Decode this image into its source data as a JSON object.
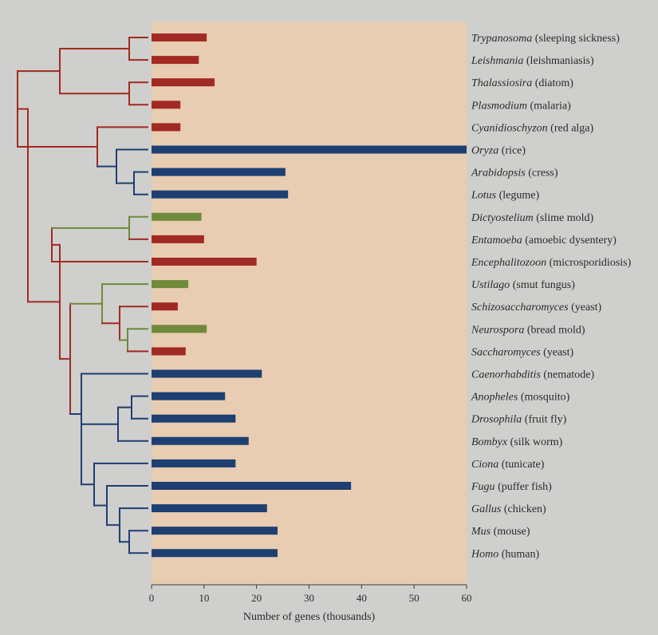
{
  "chart_data": {
    "type": "bar",
    "orientation": "horizontal",
    "xlabel": "Number of genes (thousands)",
    "xlim": [
      0,
      60
    ],
    "xticks": [
      0,
      10,
      20,
      30,
      40,
      50,
      60
    ],
    "colors": {
      "red": "#a12a22",
      "blue": "#1e3f72",
      "green": "#6f8a3a",
      "panel": "#e8cdb2",
      "page": "#cfcfcd"
    },
    "organisms": [
      {
        "genus": "Trypanosoma",
        "common": "(sleeping sickness)",
        "value": 10.5,
        "group": "red"
      },
      {
        "genus": "Leishmania",
        "common": "(leishmaniasis)",
        "value": 9,
        "group": "red"
      },
      {
        "genus": "Thalassiosira",
        "common": "(diatom)",
        "value": 12,
        "group": "red"
      },
      {
        "genus": "Plasmodium",
        "common": "(malaria)",
        "value": 5.5,
        "group": "red"
      },
      {
        "genus": "Cyanidioschyzon",
        "common": "(red alga)",
        "value": 5.5,
        "group": "red"
      },
      {
        "genus": "Oryza",
        "common": "(rice)",
        "value": 60,
        "group": "blue"
      },
      {
        "genus": "Arabidopsis",
        "common": "(cress)",
        "value": 25.5,
        "group": "blue"
      },
      {
        "genus": "Lotus",
        "common": "(legume)",
        "value": 26,
        "group": "blue"
      },
      {
        "genus": "Dictyostelium",
        "common": "(slime mold)",
        "value": 9.5,
        "group": "green"
      },
      {
        "genus": "Entamoeba",
        "common": "(amoebic dysentery)",
        "value": 10,
        "group": "red"
      },
      {
        "genus": "Encephalitozoon",
        "common": "(microsporidiosis)",
        "value": 20,
        "group": "red"
      },
      {
        "genus": "Ustilago",
        "common": "(smut fungus)",
        "value": 7,
        "group": "green"
      },
      {
        "genus": "Schizosaccharomyces",
        "common": "(yeast)",
        "value": 5,
        "group": "red"
      },
      {
        "genus": "Neurospora",
        "common": "(bread mold)",
        "value": 10.5,
        "group": "green"
      },
      {
        "genus": "Saccharomyces",
        "common": "(yeast)",
        "value": 6.5,
        "group": "red"
      },
      {
        "genus": "Caenorhabditis",
        "common": "(nematode)",
        "value": 21,
        "group": "blue"
      },
      {
        "genus": "Anopheles",
        "common": "(mosquito)",
        "value": 14,
        "group": "blue"
      },
      {
        "genus": "Drosophila",
        "common": "(fruit fly)",
        "value": 16,
        "group": "blue"
      },
      {
        "genus": "Bombyx",
        "common": "(silk worm)",
        "value": 18.5,
        "group": "blue"
      },
      {
        "genus": "Ciona",
        "common": "(tunicate)",
        "value": 16,
        "group": "blue"
      },
      {
        "genus": "Fugu",
        "common": "(puffer fish)",
        "value": 38,
        "group": "blue"
      },
      {
        "genus": "Gallus",
        "common": "(chicken)",
        "value": 22,
        "group": "blue"
      },
      {
        "genus": "Mus",
        "common": "(mouse)",
        "value": 24,
        "group": "blue"
      },
      {
        "genus": "Homo",
        "common": "(human)",
        "value": 24,
        "group": "blue"
      }
    ]
  }
}
